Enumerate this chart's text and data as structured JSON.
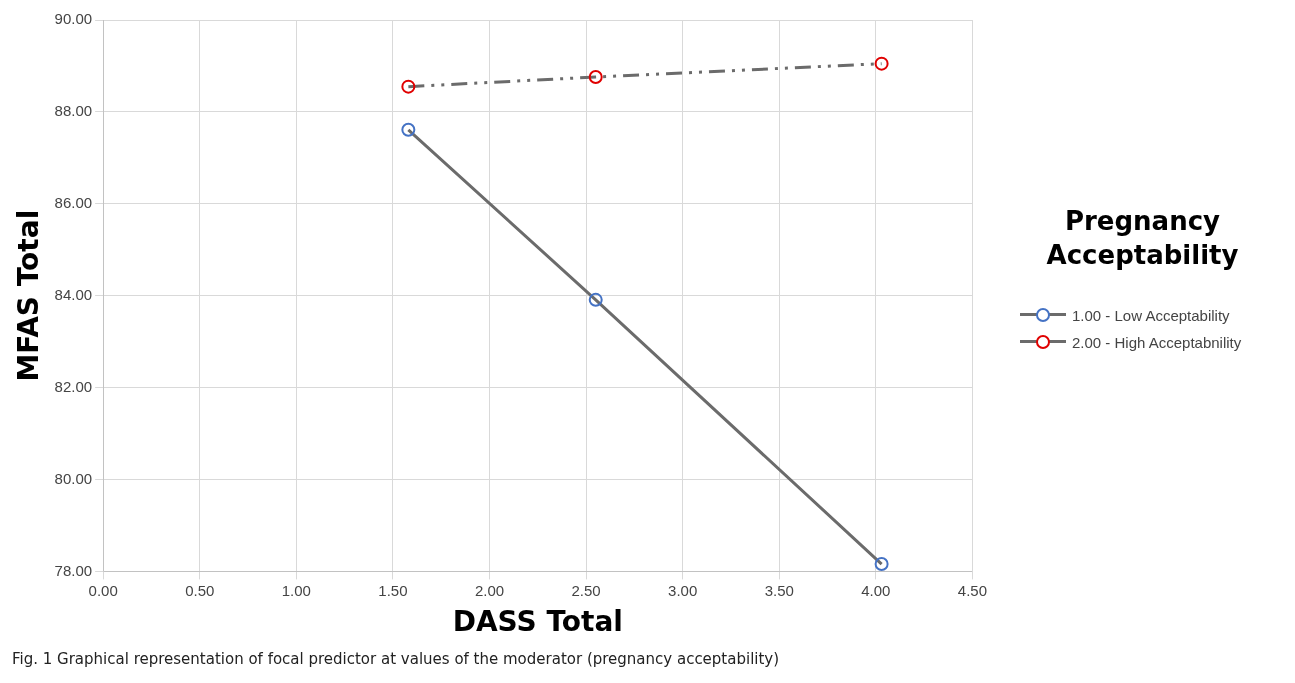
{
  "chart_data": {
    "type": "line",
    "xlabel": "DASS Total",
    "ylabel": "MFAS Total",
    "legend_title": "Pregnancy Acceptability",
    "xlim": [
      0,
      4.5
    ],
    "xticks": [
      {
        "value": 0,
        "label": "0.00"
      },
      {
        "value": 0.5,
        "label": "0.50"
      },
      {
        "value": 1,
        "label": "1.00"
      },
      {
        "value": 1.5,
        "label": "1.50"
      },
      {
        "value": 2,
        "label": "2.00"
      },
      {
        "value": 2.5,
        "label": "2.50"
      },
      {
        "value": 3,
        "label": "3.00"
      },
      {
        "value": 3.5,
        "label": "3.50"
      },
      {
        "value": 4,
        "label": "4.00"
      },
      {
        "value": 4.5,
        "label": "4.50"
      }
    ],
    "ylim": [
      78,
      90
    ],
    "yticks": [
      {
        "value": 78,
        "label": "78.00"
      },
      {
        "value": 80,
        "label": "80.00"
      },
      {
        "value": 82,
        "label": "82.00"
      },
      {
        "value": 84,
        "label": "84.00"
      },
      {
        "value": 86,
        "label": "86.00"
      },
      {
        "value": 88,
        "label": "88.00"
      },
      {
        "value": 90,
        "label": "90.00"
      }
    ],
    "x": [
      1.58,
      2.55,
      4.03
    ],
    "series": [
      {
        "name": "1.00 - Low Acceptability",
        "color": "#4472c4",
        "line_style": "solid",
        "values": [
          87.61,
          83.91,
          78.16
        ]
      },
      {
        "name": "2.00 - High Acceptabnility",
        "color": "#e00000",
        "line_style": "dashed",
        "values": [
          88.55,
          88.76,
          89.05
        ]
      }
    ],
    "marker": "circle",
    "grid": true,
    "legend": "right",
    "annotations": [
      "Fig. 1  Graphical representation of focal predictor at values of the moderator (pregnancy acceptability)"
    ]
  }
}
